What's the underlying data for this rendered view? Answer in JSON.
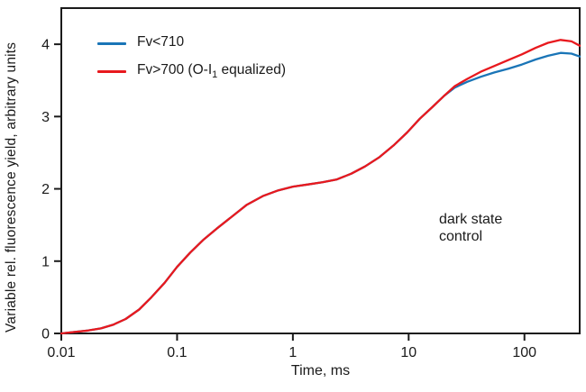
{
  "figure": {
    "background": "#ffffff",
    "frame_color": "#1a1a1a",
    "x_axis_label": "Time, ms",
    "y_axis_label": "Variable rel. fluorescence yield, arbitrary units",
    "annotation": {
      "line1": "dark state",
      "line2": "control"
    }
  },
  "legend": {
    "items": [
      {
        "label_pre": "Fv<710",
        "label_sub": "",
        "label_post": "",
        "color": "#1a75b7"
      },
      {
        "label_pre": "Fv>700 (O-I",
        "label_sub": "1",
        "label_post": " equalized)",
        "color": "#e8191e"
      }
    ]
  },
  "chart_data": {
    "type": "line",
    "title": "",
    "xlabel": "Time, ms",
    "ylabel": "Variable rel. fluorescence yield, arbitrary units",
    "x_scale": "log",
    "xlim": [
      0.01,
      300
    ],
    "ylim": [
      0,
      4.5
    ],
    "x_ticks": [
      0.01,
      0.1,
      1,
      10,
      100
    ],
    "x_tick_labels": [
      "0.01",
      "0.1",
      "1",
      "10",
      "100"
    ],
    "y_ticks": [
      0,
      1,
      2,
      3,
      4
    ],
    "grid": false,
    "legend_position": "top-left",
    "annotation": "dark state control",
    "x": [
      0.01,
      0.013,
      0.017,
      0.022,
      0.028,
      0.036,
      0.047,
      0.06,
      0.078,
      0.1,
      0.13,
      0.17,
      0.22,
      0.3,
      0.4,
      0.55,
      0.75,
      1.0,
      1.35,
      1.8,
      2.4,
      3.2,
      4.2,
      5.6,
      7.4,
      9.7,
      12.5,
      16,
      20,
      25,
      32,
      42,
      55,
      72,
      95,
      125,
      160,
      205,
      255,
      300
    ],
    "series": [
      {
        "name": "Fv<710",
        "color": "#1a75b7",
        "values": [
          0.0,
          0.02,
          0.04,
          0.07,
          0.12,
          0.2,
          0.33,
          0.5,
          0.7,
          0.92,
          1.12,
          1.3,
          1.45,
          1.62,
          1.78,
          1.9,
          1.98,
          2.03,
          2.06,
          2.09,
          2.13,
          2.21,
          2.31,
          2.44,
          2.6,
          2.78,
          2.97,
          3.13,
          3.28,
          3.4,
          3.48,
          3.55,
          3.61,
          3.66,
          3.72,
          3.79,
          3.84,
          3.88,
          3.87,
          3.83
        ]
      },
      {
        "name": "Fv>700 (O-I1 equalized)",
        "color": "#e8191e",
        "values": [
          0.0,
          0.02,
          0.04,
          0.07,
          0.12,
          0.2,
          0.33,
          0.5,
          0.7,
          0.92,
          1.12,
          1.3,
          1.45,
          1.62,
          1.78,
          1.9,
          1.98,
          2.03,
          2.06,
          2.09,
          2.13,
          2.21,
          2.31,
          2.44,
          2.6,
          2.78,
          2.97,
          3.13,
          3.28,
          3.42,
          3.52,
          3.62,
          3.7,
          3.78,
          3.86,
          3.95,
          4.02,
          4.06,
          4.04,
          3.98
        ]
      }
    ]
  }
}
